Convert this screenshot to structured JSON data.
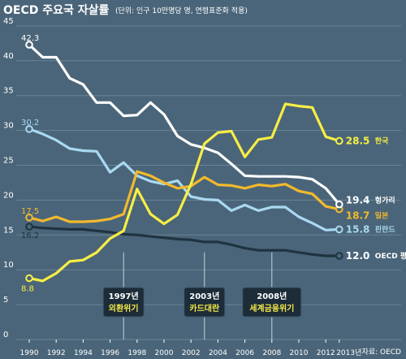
{
  "header": {
    "title": "OECD 주요국 자살률",
    "subtitle": "(단위: 인구 10만명당 명, 연령표준화 적용)"
  },
  "source": "자료: OECD",
  "colors": {
    "background": "#4a6579",
    "grid": "#6b8496",
    "hungary": "#ffffff",
    "korea": "#f7ee45",
    "japan": "#f2b92c",
    "finland": "#a9d9f2",
    "oecd": "#1f3340"
  },
  "chart_data": {
    "type": "line",
    "title": "OECD 주요국 자살률",
    "subtitle": "(단위: 인구 10만명당 명, 연령표준화 적용)",
    "xlabel": "",
    "ylabel": "",
    "xlim": [
      1990,
      2013
    ],
    "ylim": [
      0,
      45
    ],
    "y_ticks": [
      0,
      5,
      10,
      15,
      20,
      25,
      30,
      35,
      40,
      45
    ],
    "x_tick_labels": [
      "1990",
      "1992",
      "1994",
      "1996",
      "1998",
      "2000",
      "2002",
      "2004",
      "2006",
      "2008",
      "2010",
      "2012",
      "2013년"
    ],
    "grid": true,
    "x": [
      1990,
      1991,
      1992,
      1993,
      1994,
      1995,
      1996,
      1997,
      1998,
      1999,
      2000,
      2001,
      2002,
      2003,
      2004,
      2005,
      2006,
      2007,
      2008,
      2009,
      2010,
      2011,
      2012,
      2013
    ],
    "series": [
      {
        "key": "hungary",
        "name": "헝가리",
        "values": [
          42.3,
          40.5,
          40.5,
          37.5,
          36.6,
          34.0,
          34.0,
          32.1,
          32.2,
          34.0,
          32.3,
          29.2,
          28.0,
          27.5,
          26.8,
          25.2,
          23.5,
          23.4,
          23.4,
          23.4,
          23.3,
          23.0,
          21.7,
          19.4
        ],
        "start_label": "42.3",
        "end_label": "19.4"
      },
      {
        "key": "korea",
        "name": "한국",
        "values": [
          8.8,
          8.4,
          9.5,
          11.2,
          11.4,
          12.5,
          14.5,
          15.6,
          21.6,
          18.0,
          16.6,
          17.9,
          22.3,
          28.1,
          29.7,
          29.9,
          26.2,
          28.7,
          29.0,
          33.8,
          33.5,
          33.3,
          29.1,
          28.5
        ],
        "start_label": "8.8",
        "end_label": "28.5"
      },
      {
        "key": "japan",
        "name": "일본",
        "values": [
          17.5,
          17.0,
          17.6,
          16.9,
          16.9,
          17.0,
          17.3,
          18.0,
          24.1,
          23.5,
          22.5,
          21.7,
          22.0,
          23.3,
          22.2,
          22.1,
          21.7,
          22.2,
          22.0,
          22.3,
          21.3,
          20.9,
          19.1,
          18.7
        ],
        "start_label": "17.5",
        "end_label": "18.7"
      },
      {
        "key": "finland",
        "name": "핀란드",
        "values": [
          30.2,
          29.5,
          28.6,
          27.4,
          27.1,
          27.0,
          24.0,
          25.4,
          23.5,
          22.7,
          22.3,
          22.8,
          20.5,
          20.1,
          20.0,
          18.5,
          19.3,
          18.5,
          19.0,
          19.0,
          17.6,
          16.7,
          15.7,
          15.8
        ],
        "start_label": "30.2",
        "end_label": "15.8"
      },
      {
        "key": "oecd",
        "name": "OECD 평균",
        "values": [
          16.2,
          16.0,
          15.9,
          15.8,
          15.8,
          15.6,
          15.4,
          15.1,
          15.0,
          14.8,
          14.6,
          14.4,
          14.3,
          14.0,
          14.0,
          13.6,
          13.1,
          12.8,
          12.8,
          12.8,
          12.5,
          12.2,
          12.0,
          12.0
        ],
        "start_label": "16.2",
        "end_label": "12.0"
      }
    ],
    "annotations": [
      {
        "x": 1997,
        "line1": "1997년",
        "line2": "외환위기"
      },
      {
        "x": 2003,
        "line1": "2003년",
        "line2": "카드대란"
      },
      {
        "x": 2008,
        "line1": "2008년",
        "line2": "세계금융위기"
      }
    ]
  }
}
